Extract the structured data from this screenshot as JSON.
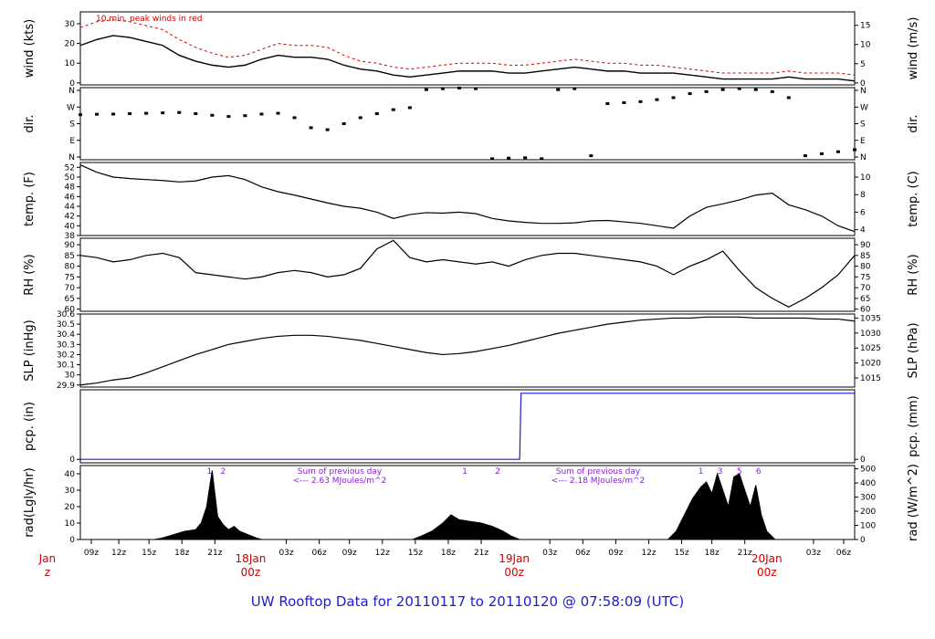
{
  "title": "UW Rooftop Data for 20110117  to  20110120 @ 07:58:09  (UTC)",
  "x_ticks": [
    "09z",
    "12z",
    "15z",
    "18z",
    "21z",
    "03z",
    "06z",
    "09z",
    "12z",
    "15z",
    "18z",
    "21z",
    "03z",
    "06z",
    "09z",
    "12z",
    "15z",
    "18z",
    "21z",
    "03z",
    "06z"
  ],
  "day_markers": [
    {
      "day": "Jan",
      "hour": "z"
    },
    {
      "day": "18Jan",
      "hour": "00z"
    },
    {
      "day": "19Jan",
      "hour": "00z"
    },
    {
      "day": "20Jan",
      "hour": "00z"
    }
  ],
  "chart_data": [
    {
      "type": "line",
      "ylabel": "wind (kts)",
      "ylabel_right": "wind (m/s)",
      "annotation": "10 min. peak winds in red",
      "yticks_left": [
        0,
        10,
        20,
        30
      ],
      "yticks_right": [
        0,
        5,
        10,
        15
      ],
      "ylim": [
        -1,
        36
      ],
      "series": [
        {
          "color": "#000000",
          "x": [
            0,
            6,
            12,
            18,
            24,
            30,
            36,
            42,
            48,
            54,
            60,
            66,
            72,
            78,
            84,
            90,
            96,
            102,
            108,
            114,
            120,
            126,
            132,
            138,
            144,
            150,
            156,
            162,
            168,
            174,
            180,
            186,
            192,
            198,
            204,
            210,
            216,
            222,
            228,
            234,
            240,
            246,
            252,
            258,
            264,
            270,
            276,
            282
          ],
          "values": [
            19,
            22,
            24,
            23,
            21,
            19,
            14,
            11,
            9,
            8,
            9,
            12,
            14,
            13,
            13,
            12,
            9,
            7,
            6,
            4,
            3,
            4,
            5,
            6,
            6,
            6,
            5,
            5,
            6,
            7,
            8,
            7,
            6,
            6,
            5,
            5,
            5,
            4,
            3,
            2,
            2,
            2,
            2,
            3,
            2,
            2,
            2,
            1
          ]
        },
        {
          "color": "#cc0000",
          "x": [
            0,
            6,
            12,
            18,
            24,
            30,
            36,
            42,
            48,
            54,
            60,
            66,
            72,
            78,
            84,
            90,
            96,
            102,
            108,
            114,
            120,
            126,
            132,
            138,
            144,
            150,
            156,
            162,
            168,
            174,
            180,
            186,
            192,
            198,
            204,
            210,
            216,
            222,
            228,
            234,
            240,
            246,
            252,
            258,
            264,
            270,
            276,
            282
          ],
          "values": [
            28,
            31,
            32,
            31,
            29,
            27,
            22,
            18,
            15,
            13,
            14,
            17,
            20,
            19,
            19,
            18,
            14,
            11,
            10,
            8,
            7,
            8,
            9,
            10,
            10,
            10,
            9,
            9,
            10,
            11,
            12,
            11,
            10,
            10,
            9,
            9,
            8,
            7,
            6,
            5,
            5,
            5,
            5,
            6,
            5,
            5,
            5,
            4
          ]
        }
      ]
    },
    {
      "type": "scatter",
      "ylabel": "dir.",
      "ylabel_right": "dir.",
      "yticks_left": [
        "N",
        "E",
        "S",
        "W",
        "N"
      ],
      "yticks_right": [
        "N",
        "E",
        "S",
        "W",
        "N"
      ],
      "ylim": [
        0,
        360
      ],
      "x": [
        0,
        6,
        12,
        18,
        24,
        30,
        36,
        42,
        48,
        54,
        60,
        66,
        72,
        78,
        84,
        90,
        96,
        102,
        108,
        114,
        120,
        126,
        132,
        138,
        144,
        150,
        156,
        162,
        168,
        174,
        180,
        186,
        192,
        198,
        204,
        210,
        216,
        222,
        228,
        234,
        240,
        246,
        252,
        258,
        264,
        270,
        276,
        282
      ],
      "values": [
        225,
        227,
        228,
        230,
        232,
        234,
        236,
        230,
        222,
        216,
        220,
        228,
        232,
        210,
        160,
        150,
        180,
        210,
        230,
        250,
        260,
        350,
        355,
        358,
        355,
        5,
        8,
        10,
        5,
        350,
        355,
        20,
        280,
        285,
        290,
        300,
        310,
        330,
        340,
        350,
        355,
        350,
        340,
        310,
        20,
        30,
        40,
        50
      ]
    },
    {
      "type": "line",
      "ylabel": "temp. (F)",
      "ylabel_right": "temp. (C)",
      "yticks_left": [
        38,
        40,
        42,
        44,
        46,
        48,
        50,
        52
      ],
      "yticks_right": [
        4,
        6,
        8,
        10
      ],
      "ylim": [
        38,
        53
      ],
      "x": [
        0,
        6,
        12,
        18,
        24,
        30,
        36,
        42,
        48,
        54,
        60,
        66,
        72,
        78,
        84,
        90,
        96,
        102,
        108,
        114,
        120,
        126,
        132,
        138,
        144,
        150,
        156,
        162,
        168,
        174,
        180,
        186,
        192,
        198,
        204,
        210,
        216,
        222,
        228,
        234,
        240,
        246,
        252,
        258,
        264,
        270,
        276,
        282
      ],
      "values": [
        52.5,
        51,
        50,
        49.7,
        49.5,
        49.3,
        49,
        49.2,
        50,
        50.3,
        49.5,
        48,
        47,
        46.3,
        45.5,
        44.7,
        44,
        43.6,
        42.8,
        41.5,
        42.3,
        42.7,
        42.6,
        42.8,
        42.5,
        41.5,
        41,
        40.7,
        40.5,
        40.5,
        40.6,
        41,
        41.1,
        40.8,
        40.5,
        40,
        39.5,
        42,
        43.8,
        44.5,
        45.3,
        46.3,
        46.7,
        44.3,
        43.3,
        42,
        40,
        38.8
      ]
    },
    {
      "type": "line",
      "ylabel": "RH (%)",
      "ylabel_right": "RH (%)",
      "yticks_left": [
        60,
        65,
        70,
        75,
        80,
        85,
        90
      ],
      "yticks_right": [
        60,
        65,
        70,
        75,
        80,
        85,
        90
      ],
      "ylim": [
        59,
        93
      ],
      "x": [
        0,
        6,
        12,
        18,
        24,
        30,
        36,
        42,
        48,
        54,
        60,
        66,
        72,
        78,
        84,
        90,
        96,
        102,
        108,
        114,
        120,
        126,
        132,
        138,
        144,
        150,
        156,
        162,
        168,
        174,
        180,
        186,
        192,
        198,
        204,
        210,
        216,
        222,
        228,
        234,
        240,
        246,
        252,
        258,
        264,
        270,
        276,
        282
      ],
      "values": [
        85,
        84,
        82,
        83,
        85,
        86,
        84,
        77,
        76,
        75,
        74,
        75,
        77,
        78,
        77,
        75,
        76,
        79,
        88,
        92,
        84,
        82,
        83,
        82,
        81,
        82,
        80,
        83,
        85,
        86,
        86,
        85,
        84,
        83,
        82,
        80,
        76,
        80,
        83,
        87,
        78,
        70,
        65,
        61,
        65,
        70,
        76,
        85
      ]
    },
    {
      "type": "line",
      "ylabel": "SLP (inHg)",
      "ylabel_right": "SLP (hPa)",
      "yticks_left": [
        29.9,
        30.0,
        30.1,
        30.2,
        30.3,
        30.4,
        30.5,
        30.6
      ],
      "yticks_right": [
        1015,
        1020,
        1025,
        1030,
        1035
      ],
      "ylim": [
        29.88,
        30.6
      ],
      "x": [
        0,
        6,
        12,
        18,
        24,
        30,
        36,
        42,
        48,
        54,
        60,
        66,
        72,
        78,
        84,
        90,
        96,
        102,
        108,
        114,
        120,
        126,
        132,
        138,
        144,
        150,
        156,
        162,
        168,
        174,
        180,
        186,
        192,
        198,
        204,
        210,
        216,
        222,
        228,
        234,
        240,
        246,
        252,
        258,
        264,
        270,
        276,
        282
      ],
      "values": [
        29.9,
        29.92,
        29.95,
        29.97,
        30.02,
        30.08,
        30.14,
        30.2,
        30.25,
        30.3,
        30.33,
        30.36,
        30.38,
        30.39,
        30.39,
        30.38,
        30.36,
        30.34,
        30.31,
        30.28,
        30.25,
        30.22,
        30.2,
        30.21,
        30.23,
        30.26,
        30.29,
        30.33,
        30.37,
        30.41,
        30.44,
        30.47,
        30.5,
        30.52,
        30.54,
        30.55,
        30.56,
        30.56,
        30.57,
        30.57,
        30.57,
        30.56,
        30.56,
        30.56,
        30.56,
        30.55,
        30.55,
        30.53
      ]
    },
    {
      "type": "line",
      "ylabel": "pcp. (in)",
      "ylabel_right": "pcp. (mm)",
      "yticks_left": [
        0
      ],
      "yticks_right": [
        0
      ],
      "ylim": [
        -0.05,
        1.0
      ],
      "x": [
        0,
        160,
        160.5,
        282
      ],
      "values": [
        0,
        0,
        0.95,
        0.95
      ]
    },
    {
      "type": "area",
      "ylabel": "rad(Lgly/hr)",
      "ylabel_right": "rad (W/m^2)",
      "yticks_left": [
        0,
        10,
        20,
        30,
        40
      ],
      "yticks_right": [
        0,
        100,
        200,
        300,
        400,
        500
      ],
      "ylim": [
        0,
        45
      ],
      "annotations": [
        "Sum of previous day",
        "<--- 2.63 MJoules/m^2",
        "Sum of previous day",
        "<--- 2.18 MJoules/m^2"
      ],
      "hour_labels": [
        {
          "x": 47,
          "text": "1"
        },
        {
          "x": 52,
          "text": "2"
        },
        {
          "x": 140,
          "text": "1"
        },
        {
          "x": 152,
          "text": "2"
        },
        {
          "x": 226,
          "text": "1"
        },
        {
          "x": 233,
          "text": "3"
        },
        {
          "x": 240,
          "text": "5"
        },
        {
          "x": 247,
          "text": "6"
        }
      ],
      "x": [
        0,
        27,
        30,
        34,
        38,
        42,
        44,
        46,
        48,
        50,
        52,
        54,
        56,
        58,
        61,
        64,
        66,
        121,
        124,
        128,
        132,
        135,
        138,
        142,
        146,
        150,
        154,
        157,
        160,
        214,
        217,
        220,
        223,
        226,
        228,
        230,
        232,
        234,
        236,
        238,
        240,
        242,
        244,
        246,
        248,
        250,
        253,
        282
      ],
      "values": [
        0,
        0,
        1,
        3,
        5,
        6,
        10,
        20,
        42,
        14,
        9,
        6,
        8,
        5,
        3,
        1,
        0,
        0,
        2,
        5,
        10,
        15,
        12,
        11,
        10,
        8,
        5,
        2,
        0,
        0,
        5,
        15,
        25,
        32,
        35,
        28,
        40,
        30,
        20,
        38,
        40,
        30,
        20,
        33,
        15,
        5,
        0,
        0
      ]
    }
  ]
}
